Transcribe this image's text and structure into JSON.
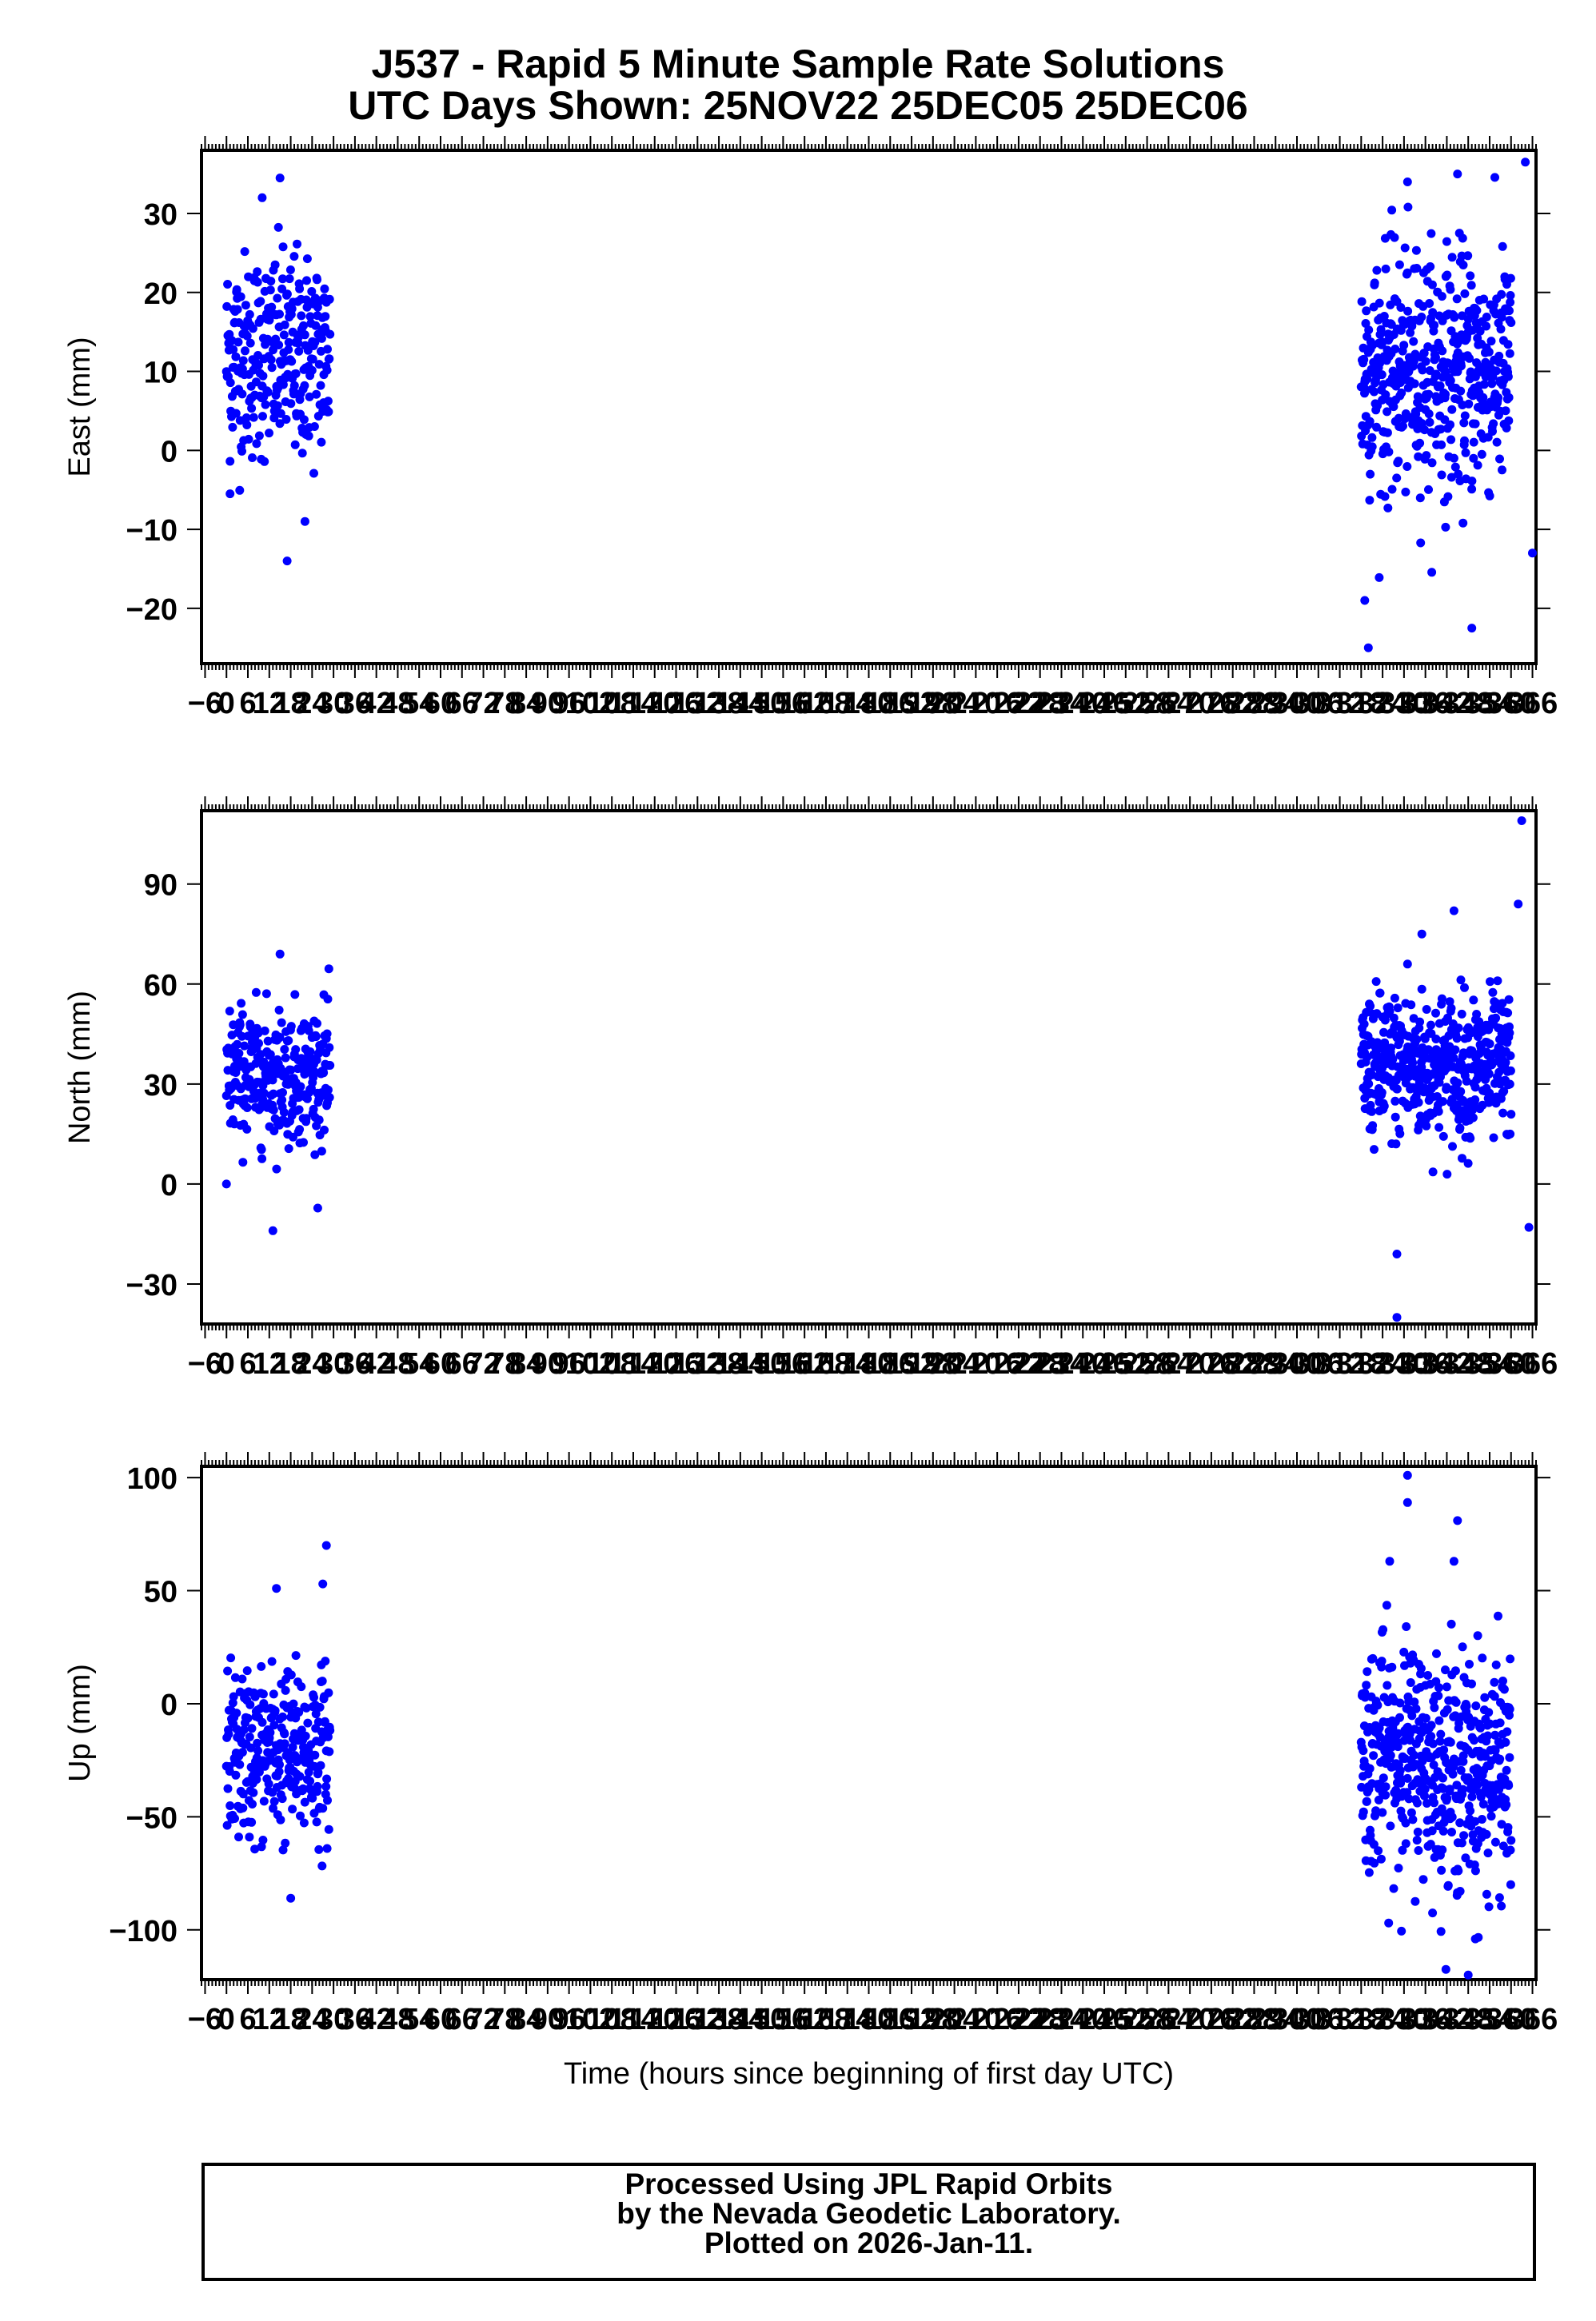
{
  "title": {
    "line1": "J537 - Rapid 5 Minute Sample Rate Solutions",
    "line2": "UTC Days Shown:  25NOV22 25DEC05 25DEC06"
  },
  "footer": {
    "line1": "Processed Using JPL Rapid Orbits",
    "line2": "by the Nevada Geodetic Laboratory.",
    "line3": "Plotted on 2026-Jan-11."
  },
  "colors": {
    "points": "#0000ff",
    "frame": "#000000",
    "text": "#000000"
  },
  "chart_data": [
    {
      "type": "scatter",
      "ylabel": "East (mm)",
      "xlabel": "",
      "xlim": [
        -7,
        367
      ],
      "ylim": [
        -27,
        38
      ],
      "yticks": [
        -20,
        -10,
        0,
        10,
        20,
        30
      ],
      "xticks": [
        -6,
        0,
        6,
        12,
        18,
        24,
        30,
        36,
        42,
        48,
        54,
        60,
        66,
        72,
        78,
        84,
        90,
        96,
        102,
        108,
        114,
        120,
        126,
        132,
        138,
        144,
        150,
        156,
        162,
        168,
        174,
        180,
        186,
        192,
        198,
        204,
        210,
        216,
        222,
        228,
        234,
        240,
        246,
        252,
        258,
        264,
        270,
        276,
        282,
        288,
        294,
        300,
        306,
        312,
        318,
        324,
        330,
        336,
        342,
        348,
        354,
        360,
        366
      ],
      "segments": [
        {
          "x0": 0,
          "x1": 29,
          "mean": 12,
          "sd": 6.5,
          "n": 290
        },
        {
          "x0": 318,
          "x1": 360,
          "mean": 10,
          "sd": 7.5,
          "n": 500
        }
      ],
      "outliers": [
        {
          "x": 15,
          "y": 34.5
        },
        {
          "x": 10,
          "y": 32
        },
        {
          "x": 17,
          "y": -14
        },
        {
          "x": 22,
          "y": -9
        },
        {
          "x": 331,
          "y": 34
        },
        {
          "x": 345,
          "y": 35
        },
        {
          "x": 364,
          "y": 36.5
        },
        {
          "x": 320,
          "y": -25
        },
        {
          "x": 319,
          "y": -19
        },
        {
          "x": 349,
          "y": -22.5
        },
        {
          "x": 1,
          "y": -5.5
        },
        {
          "x": 366,
          "y": -13
        }
      ]
    },
    {
      "type": "scatter",
      "ylabel": "North (mm)",
      "xlabel": "",
      "xlim": [
        -7,
        367
      ],
      "ylim": [
        -42,
        112
      ],
      "yticks": [
        -30,
        0,
        30,
        60,
        90
      ],
      "xticks": [
        -6,
        0,
        6,
        12,
        18,
        24,
        30,
        36,
        42,
        48,
        54,
        60,
        66,
        72,
        78,
        84,
        90,
        96,
        102,
        108,
        114,
        120,
        126,
        132,
        138,
        144,
        150,
        156,
        162,
        168,
        174,
        180,
        186,
        192,
        198,
        204,
        210,
        216,
        222,
        228,
        234,
        240,
        246,
        252,
        258,
        264,
        270,
        276,
        282,
        288,
        294,
        300,
        306,
        312,
        318,
        324,
        330,
        336,
        342,
        348,
        354,
        360,
        366
      ],
      "segments": [
        {
          "x0": 0,
          "x1": 29,
          "mean": 33,
          "sd": 10,
          "n": 290
        },
        {
          "x0": 318,
          "x1": 360,
          "mean": 35,
          "sd": 11,
          "n": 500
        }
      ],
      "outliers": [
        {
          "x": 15,
          "y": 69
        },
        {
          "x": 13,
          "y": -14
        },
        {
          "x": 0,
          "y": 0
        },
        {
          "x": 328,
          "y": -40
        },
        {
          "x": 328,
          "y": -21
        },
        {
          "x": 335,
          "y": 75
        },
        {
          "x": 344,
          "y": 82
        },
        {
          "x": 363,
          "y": 109
        },
        {
          "x": 362,
          "y": 84
        },
        {
          "x": 365,
          "y": -13
        },
        {
          "x": 331,
          "y": 66
        }
      ]
    },
    {
      "type": "scatter",
      "ylabel": "Up (mm)",
      "xlabel": "Time (hours since beginning of first day UTC)",
      "xlim": [
        -7,
        367
      ],
      "ylim": [
        -122,
        105
      ],
      "yticks": [
        -100,
        -50,
        0,
        50,
        100
      ],
      "xticks": [
        -6,
        0,
        6,
        12,
        18,
        24,
        30,
        36,
        42,
        48,
        54,
        60,
        66,
        72,
        78,
        84,
        90,
        96,
        102,
        108,
        114,
        120,
        126,
        132,
        138,
        144,
        150,
        156,
        162,
        168,
        174,
        180,
        186,
        192,
        198,
        204,
        210,
        216,
        222,
        228,
        234,
        240,
        246,
        252,
        258,
        264,
        270,
        276,
        282,
        288,
        294,
        300,
        306,
        312,
        318,
        324,
        330,
        336,
        342,
        348,
        354,
        360,
        366
      ],
      "segments": [
        {
          "x0": 0,
          "x1": 29,
          "mean": -22,
          "sd": 19,
          "n": 290
        },
        {
          "x0": 318,
          "x1": 338,
          "mean": -22,
          "sd": 25,
          "n": 240
        },
        {
          "x0": 338,
          "x1": 360,
          "mean": -30,
          "sd": 25,
          "n": 260
        }
      ],
      "outliers": [
        {
          "x": 28,
          "y": 70
        },
        {
          "x": 27,
          "y": 53
        },
        {
          "x": 14,
          "y": 51
        },
        {
          "x": 18,
          "y": -86
        },
        {
          "x": 331,
          "y": 101
        },
        {
          "x": 331,
          "y": 89
        },
        {
          "x": 345,
          "y": 81
        },
        {
          "x": 348,
          "y": -120
        },
        {
          "x": 350,
          "y": -104
        },
        {
          "x": 326,
          "y": 63
        },
        {
          "x": 344,
          "y": 63
        }
      ]
    }
  ]
}
